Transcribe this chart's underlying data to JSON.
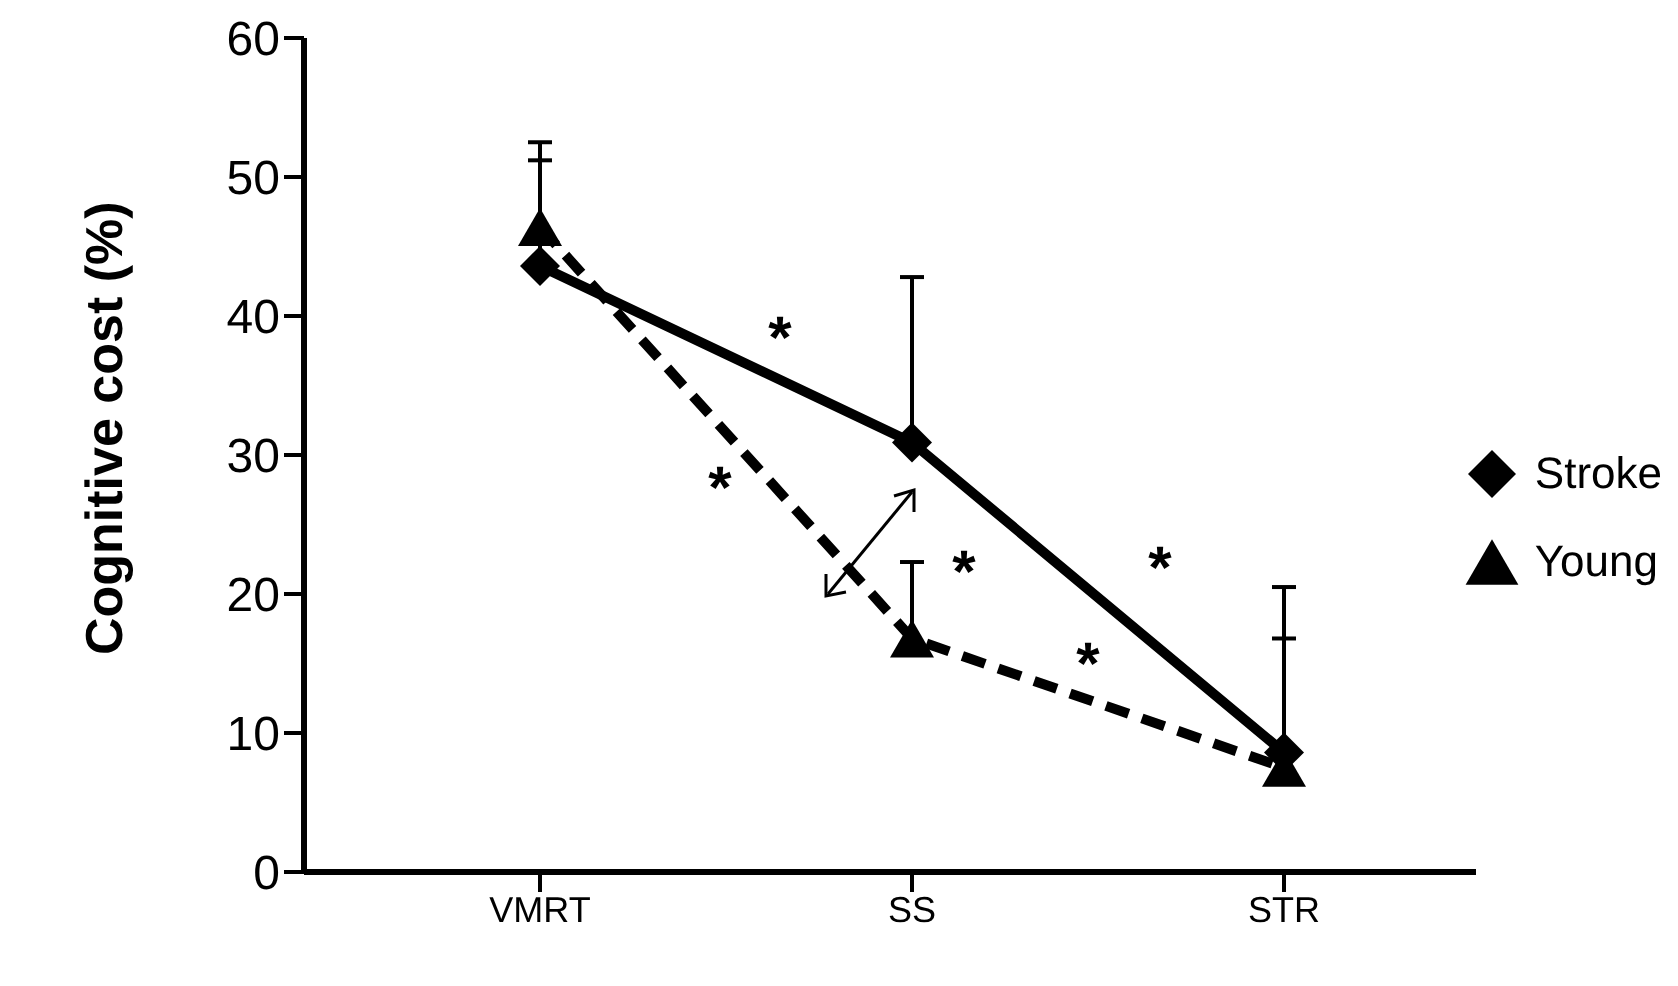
{
  "chart_data": {
    "type": "line",
    "ylabel": "Cognitive cost (%)",
    "categories": [
      "VMRT",
      "SS",
      "STR"
    ],
    "series": [
      {
        "name": "Stroke",
        "color": "#000000",
        "marker": "diamond",
        "line_style": "solid",
        "values": [
          43.6,
          30.9,
          8.6
        ],
        "errors": [
          [
            43.6,
            51.2
          ],
          [
            30.9,
            42.8
          ],
          [
            8.6,
            16.8
          ]
        ]
      },
      {
        "name": "Young",
        "color": "#000000",
        "marker": "triangle",
        "line_style": "dashed",
        "values": [
          46.4,
          16.8,
          7.5
        ],
        "errors": [
          [
            46.4,
            52.5
          ],
          [
            16.8,
            22.3
          ],
          [
            7.5,
            20.5
          ]
        ]
      }
    ],
    "ylim": [
      0,
      60
    ],
    "yticks": [
      0,
      10,
      20,
      30,
      40,
      50,
      60
    ],
    "legend": "right",
    "annotations": [
      "*",
      "*",
      "*",
      "*",
      "*"
    ]
  }
}
